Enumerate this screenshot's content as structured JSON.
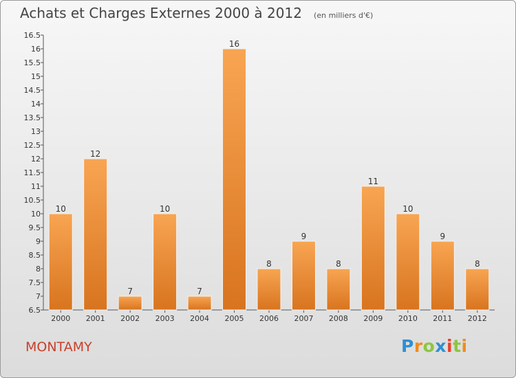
{
  "title": "Achats et Charges Externes 2000 à 2012",
  "unit_note": "(en milliers d'€)",
  "town": "MONTAMY",
  "logo": {
    "text": "Proxiti",
    "letters": [
      {
        "ch": "P",
        "color": "#2f8fd0"
      },
      {
        "ch": "r",
        "color": "#f08c1e"
      },
      {
        "ch": "o",
        "color": "#8cc63f"
      },
      {
        "ch": "x",
        "color": "#2f8fd0"
      },
      {
        "ch": "i",
        "color": "#e8412c"
      },
      {
        "ch": "t",
        "color": "#8cc63f"
      },
      {
        "ch": "i",
        "color": "#f08c1e"
      }
    ]
  },
  "colors": {
    "bar_light": "#f8a552",
    "bar_dark": "#d8741f",
    "title": "#444444",
    "town": "#c8402a"
  },
  "chart_data": {
    "type": "bar",
    "categories": [
      "2000",
      "2001",
      "2002",
      "2003",
      "2004",
      "2005",
      "2006",
      "2007",
      "2008",
      "2009",
      "2010",
      "2011",
      "2012"
    ],
    "values": [
      10,
      12,
      7,
      10,
      7,
      16,
      8,
      9,
      8,
      11,
      10,
      9,
      8
    ],
    "ylim": [
      6.5,
      16.5
    ],
    "yticks": [
      6.5,
      7,
      7.5,
      8,
      8.5,
      9,
      9.5,
      10,
      10.5,
      11,
      11.5,
      12,
      12.5,
      13,
      13.5,
      14,
      14.5,
      15,
      15.5,
      16,
      16.5
    ],
    "grid": false,
    "legend": "none"
  }
}
